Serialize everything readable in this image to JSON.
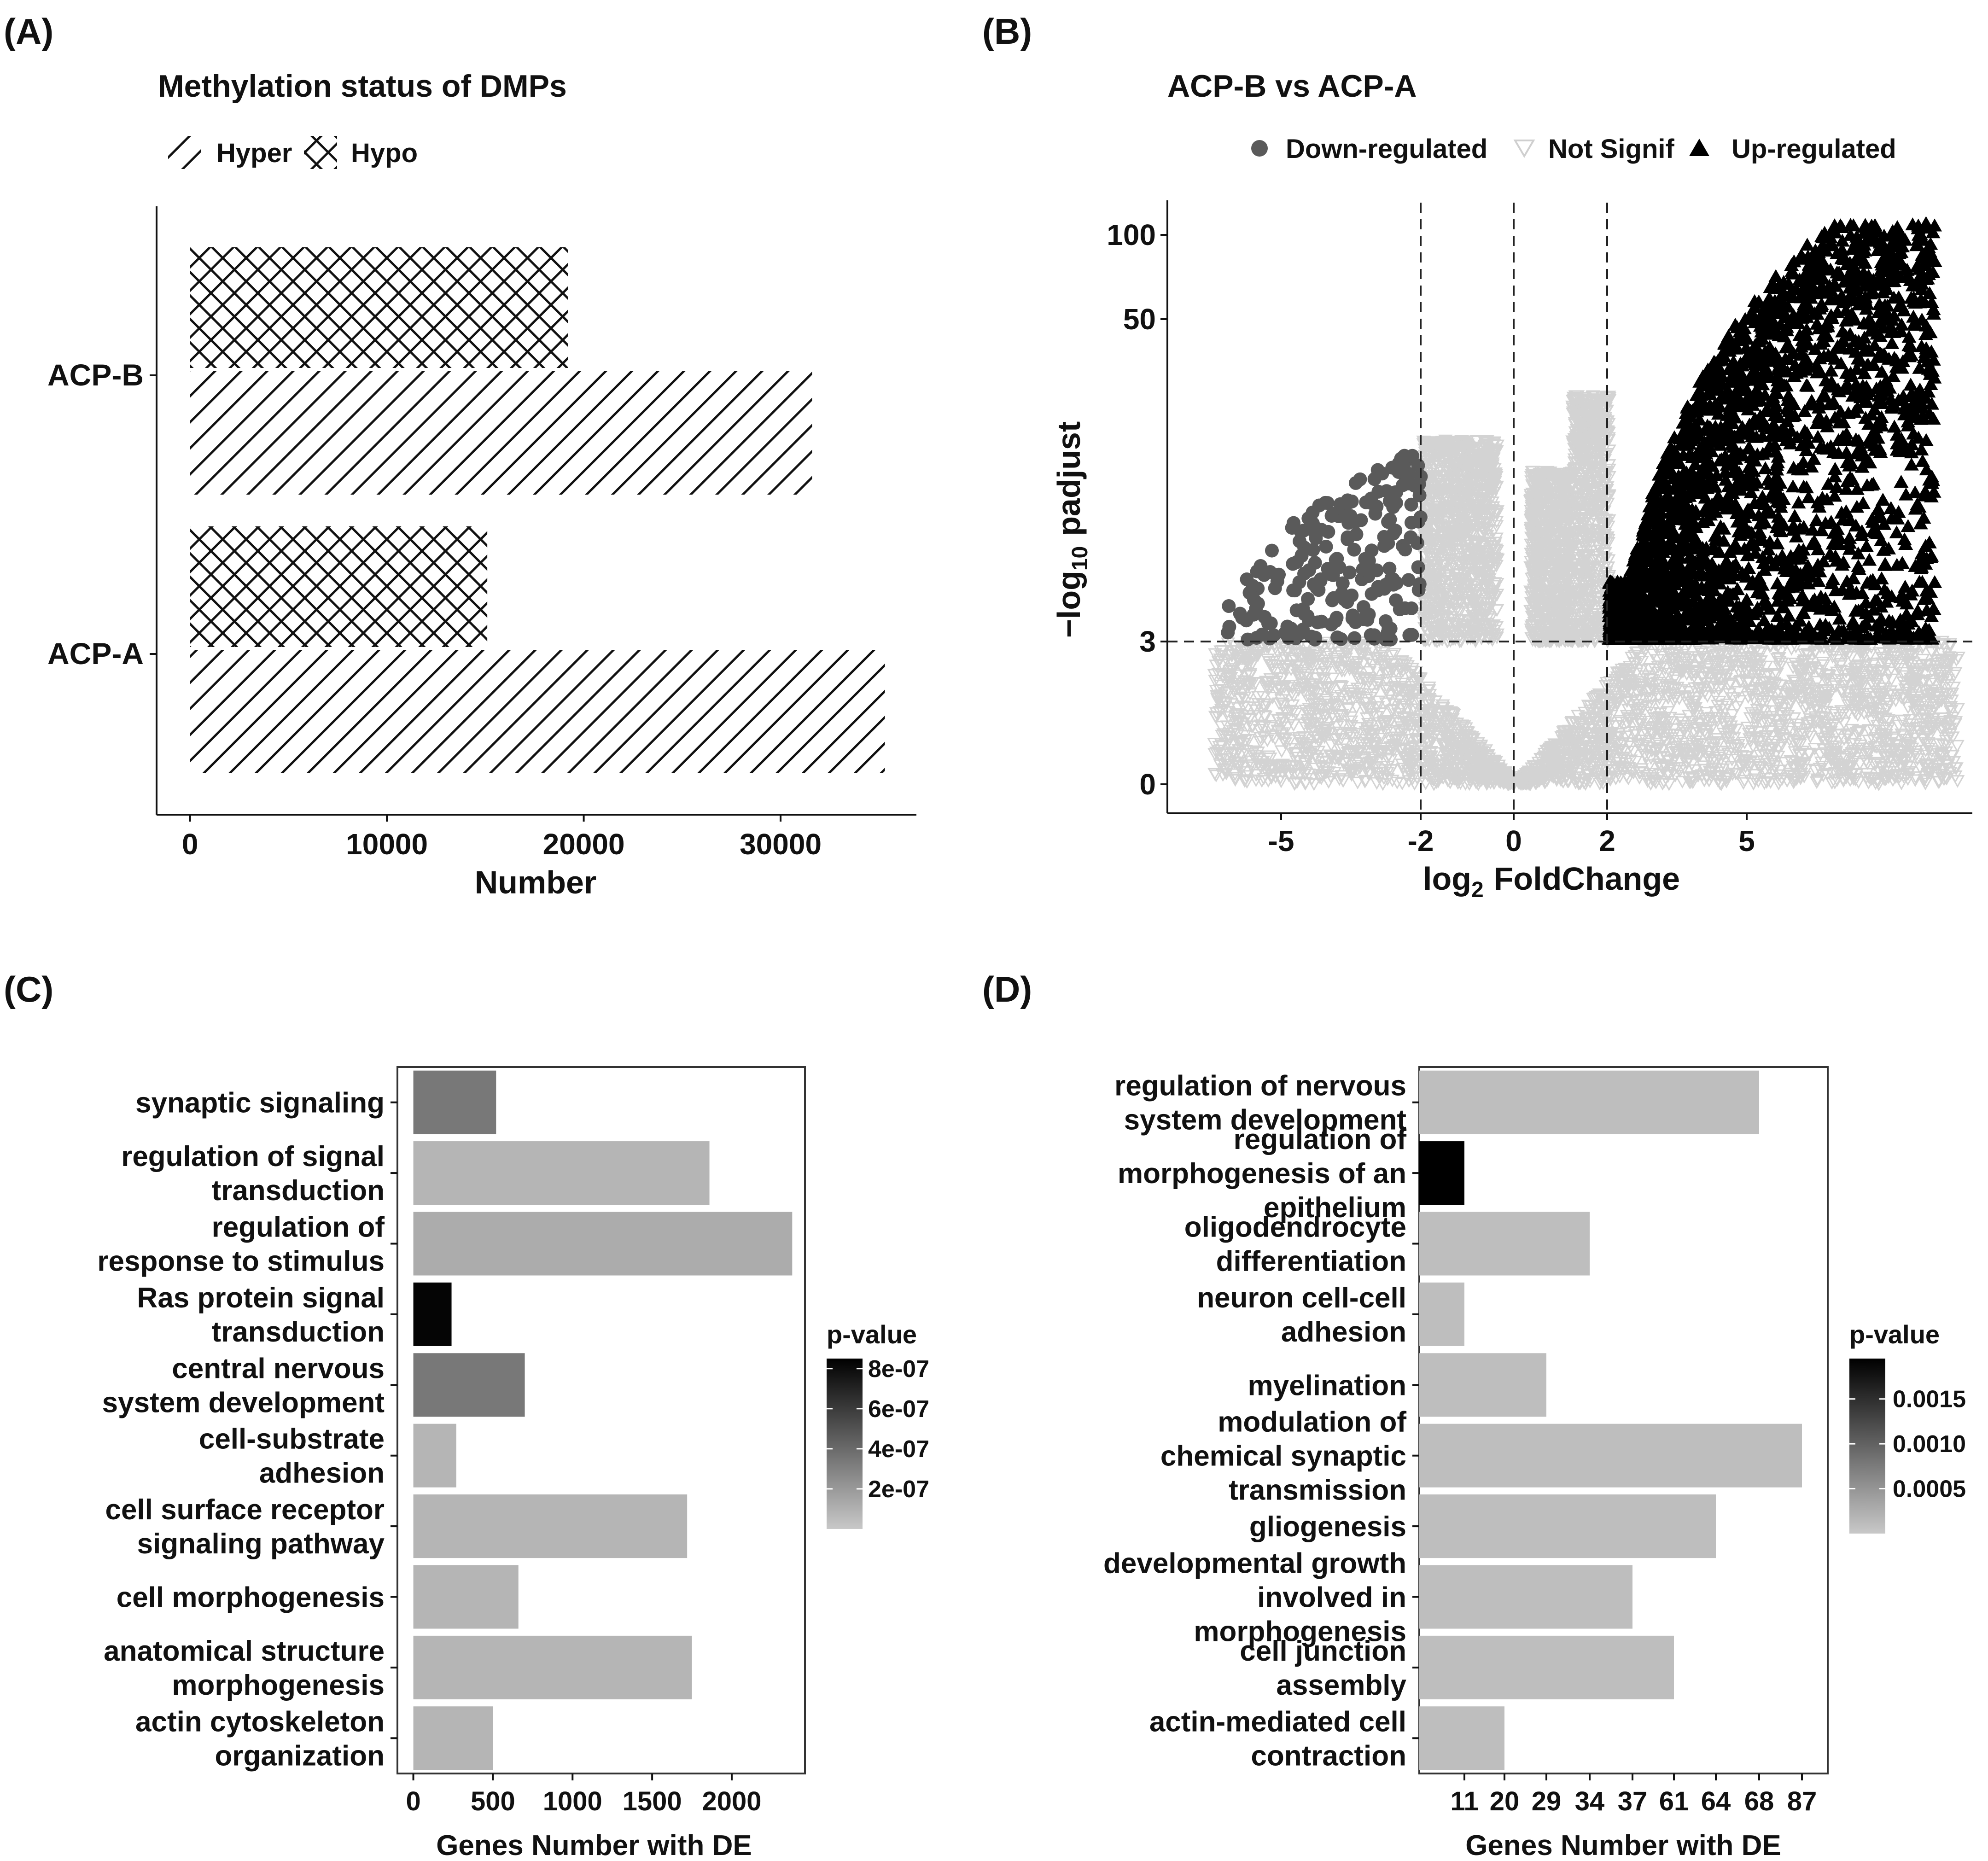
{
  "panel_labels": {
    "a": "(A)",
    "b": "(B)",
    "c": "(C)",
    "d": "(D)"
  },
  "colors": {
    "down": "#5a5a5a",
    "not_signif": "#d3d3d3",
    "up": "#000000",
    "bar_light": "#c3c3c3",
    "bar_mid": "#8f8f8f",
    "bar_dark": "#000000"
  },
  "chart_data": [
    {
      "id": "A",
      "type": "bar",
      "orientation": "horizontal",
      "title": "Methylation status of DMPs",
      "legend": {
        "entries": [
          "Hyper",
          "Hypo"
        ],
        "patterns": [
          "diagonal-lines",
          "crosshatch"
        ],
        "placement": "top-left"
      },
      "categories": [
        "ACP-B",
        "ACP-A"
      ],
      "series": [
        {
          "name": "Hypo",
          "values": [
            19200,
            15100
          ]
        },
        {
          "name": "Hyper",
          "values": [
            31600,
            35300
          ]
        }
      ],
      "xlabel": "Number",
      "xticks": [
        "0",
        "10000",
        "20000",
        "30000"
      ],
      "xlim": [
        -1700,
        36900
      ]
    },
    {
      "id": "B",
      "type": "scatter",
      "title": "ACP-B vs ACP-A",
      "legend": {
        "entries": [
          "Down-regulated",
          "Not Signif",
          "Up-regulated"
        ],
        "markers": [
          "circle",
          "triangle-down-open",
          "triangle-up"
        ],
        "placement": "top"
      },
      "xlabel_main": "log",
      "xlabel_sub": "2",
      "xlabel_rest": "FoldChange",
      "ylabel_main": "−log",
      "ylabel_sub": "10",
      "ylabel_rest": "padjust",
      "xticks": [
        "-5",
        "-2",
        "0",
        "2",
        "5"
      ],
      "yticks": [
        "0",
        "3",
        "50",
        "100"
      ],
      "xlim": [
        -7.5,
        9.8
      ],
      "vlines": [
        -2,
        0,
        2
      ],
      "hline": 3,
      "approx_points": {
        "down_regulated": 220,
        "not_signif": 6000,
        "up_regulated": 2600
      }
    },
    {
      "id": "C",
      "type": "bar",
      "orientation": "horizontal",
      "xlabel": "Genes Number with DE",
      "xticks": [
        "0",
        "500",
        "1000",
        "1500",
        "2000"
      ],
      "xlim": [
        -100,
        2460
      ],
      "legend": {
        "title": "p-value",
        "labels": [
          "8e-07",
          "6e-07",
          "4e-07",
          "2e-07"
        ],
        "range": [
          0,
          8.5e-07
        ],
        "placement": "right"
      },
      "categories": [
        [
          "synaptic signaling"
        ],
        [
          "regulation of signal",
          "transduction"
        ],
        [
          "regulation of",
          "response to stimulus"
        ],
        [
          "Ras protein signal",
          "transduction"
        ],
        [
          "central nervous",
          "system development"
        ],
        [
          "cell-substrate",
          "adhesion"
        ],
        [
          "cell surface receptor",
          "signaling pathway"
        ],
        [
          "cell morphogenesis"
        ],
        [
          "anatomical structure",
          "morphogenesis"
        ],
        [
          "actin cytoskeleton",
          "organization"
        ]
      ],
      "values": [
        520,
        1860,
        2380,
        240,
        700,
        270,
        1720,
        660,
        1750,
        500
      ],
      "pvalues": [
        3.4e-07,
        8e-08,
        1.2e-07,
        8.3e-07,
        3.4e-07,
        8e-08,
        8e-08,
        8e-08,
        8e-08,
        8e-08
      ]
    },
    {
      "id": "D",
      "type": "bar",
      "orientation": "horizontal",
      "xlabel": "Genes Number with DE",
      "xticks": [
        "11",
        "20",
        "29",
        "34",
        "37",
        "61",
        "64",
        "68",
        "87"
      ],
      "legend": {
        "title": "p-value",
        "labels": [
          "0.0015",
          "0.0010",
          "0.0005"
        ],
        "range": [
          0,
          0.00195
        ],
        "placement": "right"
      },
      "categories": [
        [
          "regulation of nervous",
          "system development"
        ],
        [
          "regulation of",
          "morphogenesis of an",
          "epithelium"
        ],
        [
          "oligodendrocyte",
          "differentiation"
        ],
        [
          "neuron cell-cell",
          "adhesion"
        ],
        [
          "myelination"
        ],
        [
          "modulation of",
          "chemical synaptic",
          "transmission"
        ],
        [
          "gliogenesis"
        ],
        [
          "developmental growth",
          "involved in",
          "morphogenesis"
        ],
        [
          "cell junction",
          "assembly"
        ],
        [
          "actin-mediated cell",
          "contraction"
        ]
      ],
      "values": [
        68,
        11,
        34,
        11,
        29,
        87,
        64,
        37,
        61,
        20
      ],
      "pvalues": [
        0.0001,
        0.00195,
        0.0001,
        0.0001,
        0.0001,
        0.0001,
        0.0001,
        0.0001,
        0.0001,
        0.0001
      ]
    }
  ]
}
